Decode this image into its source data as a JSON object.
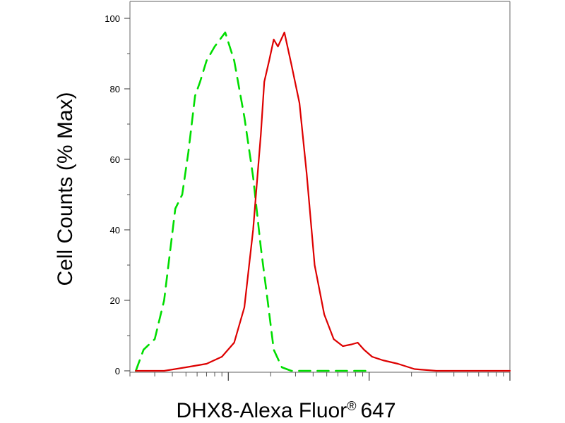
{
  "chart_data": {
    "type": "line",
    "title": "",
    "xlabel": "DHX8-Alexa Fluor",
    "xlabel_superscript": "®",
    "xlabel_suffix": "647",
    "ylabel": "Cell Counts (% Max)",
    "xscale": "log",
    "xlim": [
      0.2,
      100
    ],
    "ylim": [
      0,
      100
    ],
    "ytick_labels": [
      "0",
      "20",
      "40",
      "60",
      "80",
      "100"
    ],
    "ytick_values": [
      0,
      20,
      40,
      60,
      80,
      100
    ],
    "grid": false,
    "legend": "none",
    "series": [
      {
        "color": "#00dd00",
        "style": "dashed",
        "points": [
          [
            0.22,
            0
          ],
          [
            0.25,
            6
          ],
          [
            0.3,
            9
          ],
          [
            0.35,
            20
          ],
          [
            0.42,
            46
          ],
          [
            0.47,
            50
          ],
          [
            0.52,
            62
          ],
          [
            0.58,
            78
          ],
          [
            0.63,
            82
          ],
          [
            0.7,
            88
          ],
          [
            0.8,
            92
          ],
          [
            0.95,
            96
          ],
          [
            1.1,
            88
          ],
          [
            1.3,
            72
          ],
          [
            1.5,
            55
          ],
          [
            1.7,
            35
          ],
          [
            1.9,
            20
          ],
          [
            2.1,
            6
          ],
          [
            2.4,
            1
          ],
          [
            2.8,
            0
          ],
          [
            5,
            0
          ],
          [
            10,
            0
          ]
        ]
      },
      {
        "color": "#dd0000",
        "style": "solid",
        "points": [
          [
            0.22,
            0
          ],
          [
            0.35,
            0
          ],
          [
            0.5,
            1
          ],
          [
            0.7,
            2
          ],
          [
            0.9,
            4
          ],
          [
            1.1,
            8
          ],
          [
            1.3,
            18
          ],
          [
            1.5,
            40
          ],
          [
            1.7,
            67
          ],
          [
            1.8,
            82
          ],
          [
            1.95,
            88
          ],
          [
            2.1,
            94
          ],
          [
            2.25,
            92
          ],
          [
            2.5,
            96
          ],
          [
            2.8,
            87
          ],
          [
            3.2,
            76
          ],
          [
            3.6,
            56
          ],
          [
            4.1,
            30
          ],
          [
            4.8,
            16
          ],
          [
            5.6,
            9
          ],
          [
            6.5,
            7
          ],
          [
            7.5,
            7.5
          ],
          [
            8.3,
            8
          ],
          [
            9.2,
            6
          ],
          [
            10.5,
            4
          ],
          [
            12.5,
            3
          ],
          [
            16,
            2
          ],
          [
            21,
            0.5
          ],
          [
            30,
            0
          ],
          [
            60,
            0
          ],
          [
            100,
            0
          ]
        ]
      }
    ]
  }
}
